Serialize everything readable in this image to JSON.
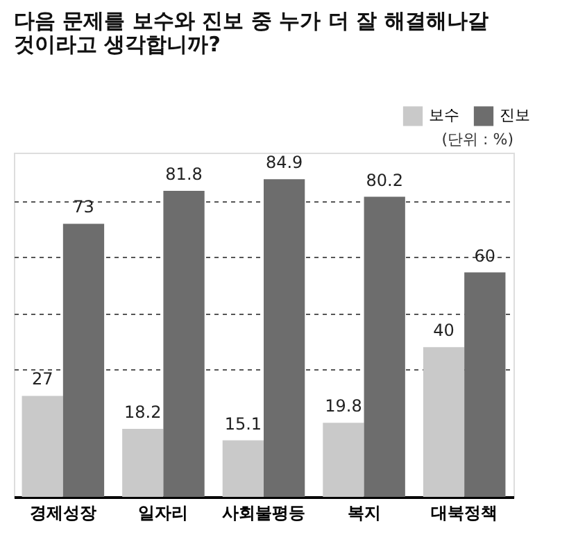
{
  "chart_data": {
    "type": "bar",
    "title": "다음 문제를 보수와 진보 중 누가 더 잘 해결해나갈\n것이라고 생각합니까?",
    "annotations": [
      "(단위 : %)"
    ],
    "categories": [
      "경제성장",
      "일자리",
      "사회불평등",
      "복지",
      "대북정책"
    ],
    "series": [
      {
        "name": "보수",
        "color": "#c9c9c9",
        "values": [
          27,
          18.2,
          15.1,
          19.8,
          40
        ]
      },
      {
        "name": "진보",
        "color": "#6d6d6d",
        "values": [
          73,
          81.8,
          84.9,
          80.2,
          60
        ]
      }
    ],
    "ylim": [
      0,
      92
    ],
    "yticks": [
      {
        "value": 34,
        "label": null
      },
      {
        "value": 49,
        "label": null
      },
      {
        "value": 64,
        "label": null
      },
      {
        "value": 79,
        "label": null
      }
    ],
    "grid": "y",
    "tick_labels": "x",
    "legend": "top right",
    "data_labels": true
  }
}
